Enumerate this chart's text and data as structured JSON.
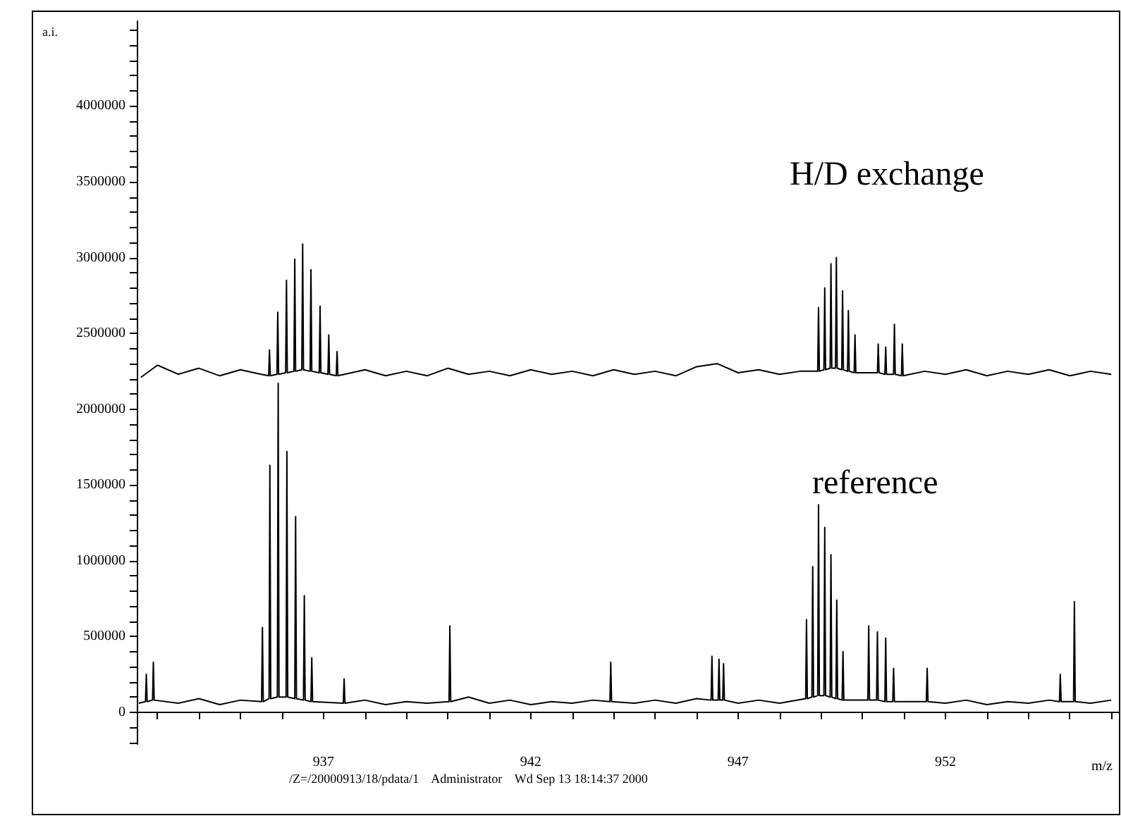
{
  "chart_data": {
    "type": "line",
    "xlabel": "m/z",
    "ylabel": "a.i.",
    "annotations": [
      "H/D exchange",
      "reference",
      "/Z=/20000913/18/pdata/1    Administrator    Wd Sep 13 18:14:37 2000"
    ],
    "xlim": [
      932.5,
      956.2
    ],
    "ylim": [
      -210000,
      4560000
    ],
    "xticks": [
      {
        "value": 933,
        "label": null
      },
      {
        "value": 934,
        "label": null
      },
      {
        "value": 935,
        "label": null
      },
      {
        "value": 936,
        "label": null
      },
      937,
      {
        "value": 938,
        "label": null
      },
      {
        "value": 939,
        "label": null
      },
      {
        "value": 940,
        "label": null
      },
      {
        "value": 941,
        "label": null
      },
      942,
      {
        "value": 943,
        "label": null
      },
      {
        "value": 944,
        "label": null
      },
      {
        "value": 945,
        "label": null
      },
      {
        "value": 946,
        "label": null
      },
      947,
      {
        "value": 948,
        "label": null
      },
      {
        "value": 949,
        "label": null
      },
      {
        "value": 950,
        "label": null
      },
      {
        "value": 951,
        "label": null
      },
      952,
      {
        "value": 953,
        "label": null
      },
      {
        "value": 954,
        "label": null
      },
      {
        "value": 955,
        "label": null
      },
      {
        "value": 956,
        "label": null
      }
    ],
    "yticks": [
      {
        "value": -200000,
        "label": null
      },
      {
        "value": -100000,
        "label": null
      },
      0,
      {
        "value": 100000,
        "label": null
      },
      {
        "value": 200000,
        "label": null
      },
      {
        "value": 300000,
        "label": null
      },
      {
        "value": 400000,
        "label": null
      },
      500000,
      {
        "value": 600000,
        "label": null
      },
      {
        "value": 700000,
        "label": null
      },
      {
        "value": 800000,
        "label": null
      },
      {
        "value": 900000,
        "label": null
      },
      1000000,
      {
        "value": 1100000,
        "label": null
      },
      {
        "value": 1200000,
        "label": null
      },
      {
        "value": 1300000,
        "label": null
      },
      {
        "value": 1400000,
        "label": null
      },
      1500000,
      {
        "value": 1600000,
        "label": null
      },
      {
        "value": 1700000,
        "label": null
      },
      {
        "value": 1800000,
        "label": null
      },
      {
        "value": 1900000,
        "label": null
      },
      2000000,
      {
        "value": 2100000,
        "label": null
      },
      {
        "value": 2200000,
        "label": null
      },
      {
        "value": 2300000,
        "label": null
      },
      {
        "value": 2400000,
        "label": null
      },
      2500000,
      {
        "value": 2600000,
        "label": null
      },
      {
        "value": 2700000,
        "label": null
      },
      {
        "value": 2800000,
        "label": null
      },
      {
        "value": 2900000,
        "label": null
      },
      3000000,
      {
        "value": 3100000,
        "label": null
      },
      {
        "value": 3200000,
        "label": null
      },
      {
        "value": 3300000,
        "label": null
      },
      {
        "value": 3400000,
        "label": null
      },
      3500000,
      {
        "value": 3600000,
        "label": null
      },
      {
        "value": 3700000,
        "label": null
      },
      {
        "value": 3800000,
        "label": null
      },
      {
        "value": 3900000,
        "label": null
      },
      4000000,
      {
        "value": 4100000,
        "label": null
      },
      {
        "value": 4200000,
        "label": null
      },
      {
        "value": 4300000,
        "label": null
      },
      {
        "value": 4400000,
        "label": null
      },
      {
        "value": 4500000,
        "label": null
      }
    ],
    "marker": "none",
    "line_style": "solid",
    "series": [
      {
        "color": "#000000",
        "x": [
          932.6,
          933.0,
          933.5,
          934.0,
          934.5,
          935.0,
          935.5,
          935.68,
          935.7,
          935.72,
          935.88,
          935.9,
          935.92,
          936.09,
          936.11,
          936.13,
          936.29,
          936.31,
          936.33,
          936.48,
          936.5,
          936.52,
          936.68,
          936.7,
          936.72,
          936.9,
          936.92,
          936.94,
          937.11,
          937.13,
          937.15,
          937.31,
          937.33,
          937.35,
          938.0,
          938.5,
          939.0,
          939.5,
          940.0,
          940.5,
          941.0,
          941.5,
          942.0,
          942.5,
          943.0,
          943.5,
          944.0,
          944.5,
          945.0,
          945.5,
          946.0,
          946.5,
          947.0,
          947.5,
          948.0,
          948.5,
          948.92,
          948.94,
          948.96,
          949.07,
          949.09,
          949.11,
          949.22,
          949.24,
          949.26,
          949.35,
          949.37,
          949.39,
          949.5,
          949.52,
          949.54,
          949.64,
          949.66,
          949.68,
          949.8,
          949.82,
          949.84,
          950.36,
          950.38,
          950.4,
          950.54,
          950.56,
          950.58,
          950.75,
          950.77,
          950.79,
          950.94,
          950.96,
          950.98,
          951.5,
          952.0,
          952.5,
          953.0,
          953.5,
          954.0,
          954.5,
          955.0,
          955.5,
          956.0
        ],
        "values": [
          2210000,
          2290000,
          2230000,
          2270000,
          2220000,
          2260000,
          2230000,
          2220000,
          2390000,
          2220000,
          2230000,
          2640000,
          2230000,
          2240000,
          2850000,
          2240000,
          2250000,
          2990000,
          2250000,
          2260000,
          3090000,
          2260000,
          2250000,
          2920000,
          2250000,
          2240000,
          2680000,
          2240000,
          2230000,
          2490000,
          2230000,
          2220000,
          2380000,
          2220000,
          2260000,
          2220000,
          2250000,
          2220000,
          2270000,
          2230000,
          2250000,
          2220000,
          2260000,
          2230000,
          2250000,
          2220000,
          2260000,
          2230000,
          2250000,
          2220000,
          2280000,
          2300000,
          2240000,
          2260000,
          2230000,
          2250000,
          2250000,
          2670000,
          2250000,
          2260000,
          2800000,
          2260000,
          2270000,
          2960000,
          2270000,
          2270000,
          3000000,
          2270000,
          2260000,
          2780000,
          2260000,
          2250000,
          2650000,
          2250000,
          2240000,
          2490000,
          2240000,
          2240000,
          2430000,
          2240000,
          2230000,
          2410000,
          2230000,
          2230000,
          2560000,
          2230000,
          2220000,
          2430000,
          2220000,
          2250000,
          2230000,
          2260000,
          2220000,
          2250000,
          2230000,
          2260000,
          2220000,
          2250000,
          2230000
        ]
      },
      {
        "color": "#000000",
        "x": [
          932.55,
          932.71,
          932.73,
          932.75,
          932.88,
          932.9,
          932.92,
          933.5,
          934.0,
          934.5,
          935.0,
          935.51,
          935.53,
          935.55,
          935.69,
          935.71,
          935.73,
          935.89,
          935.91,
          935.93,
          936.1,
          936.12,
          936.14,
          936.31,
          936.33,
          936.35,
          936.52,
          936.54,
          936.56,
          936.7,
          936.72,
          936.74,
          937.48,
          937.5,
          937.52,
          938.0,
          938.5,
          939.0,
          939.5,
          940.03,
          940.05,
          940.07,
          940.5,
          941.0,
          941.5,
          942.0,
          942.5,
          943.0,
          943.5,
          943.91,
          943.93,
          943.95,
          944.5,
          945.0,
          945.5,
          946.0,
          946.35,
          946.37,
          946.39,
          946.52,
          946.54,
          946.56,
          946.63,
          946.65,
          946.67,
          947.0,
          947.5,
          948.0,
          948.63,
          948.65,
          948.67,
          948.78,
          948.8,
          948.82,
          948.92,
          948.94,
          948.96,
          949.07,
          949.09,
          949.11,
          949.22,
          949.24,
          949.26,
          949.36,
          949.38,
          949.4,
          949.51,
          949.53,
          949.55,
          950.13,
          950.15,
          950.17,
          950.34,
          950.36,
          950.38,
          950.54,
          950.56,
          950.58,
          950.73,
          950.75,
          950.77,
          951.54,
          951.56,
          951.58,
          952.0,
          952.5,
          953.0,
          953.5,
          954.0,
          954.5,
          954.75,
          954.77,
          954.79,
          955.09,
          955.11,
          955.13,
          955.5,
          956.0
        ],
        "values": [
          60000,
          70000,
          250000,
          70000,
          80000,
          330000,
          80000,
          60000,
          90000,
          50000,
          80000,
          70000,
          560000,
          70000,
          90000,
          1630000,
          90000,
          100000,
          2170000,
          100000,
          100000,
          1720000,
          100000,
          90000,
          1290000,
          90000,
          80000,
          770000,
          80000,
          70000,
          360000,
          70000,
          60000,
          220000,
          60000,
          80000,
          50000,
          70000,
          60000,
          70000,
          570000,
          70000,
          100000,
          60000,
          80000,
          50000,
          70000,
          60000,
          80000,
          70000,
          330000,
          70000,
          60000,
          80000,
          60000,
          90000,
          80000,
          370000,
          80000,
          80000,
          350000,
          80000,
          80000,
          320000,
          80000,
          60000,
          80000,
          60000,
          90000,
          610000,
          90000,
          100000,
          960000,
          100000,
          110000,
          1370000,
          110000,
          110000,
          1220000,
          110000,
          100000,
          1040000,
          100000,
          90000,
          740000,
          90000,
          80000,
          400000,
          80000,
          80000,
          570000,
          80000,
          80000,
          530000,
          80000,
          70000,
          490000,
          70000,
          70000,
          290000,
          70000,
          70000,
          290000,
          70000,
          60000,
          80000,
          50000,
          70000,
          60000,
          80000,
          70000,
          250000,
          70000,
          70000,
          730000,
          70000,
          60000,
          80000
        ]
      }
    ]
  }
}
